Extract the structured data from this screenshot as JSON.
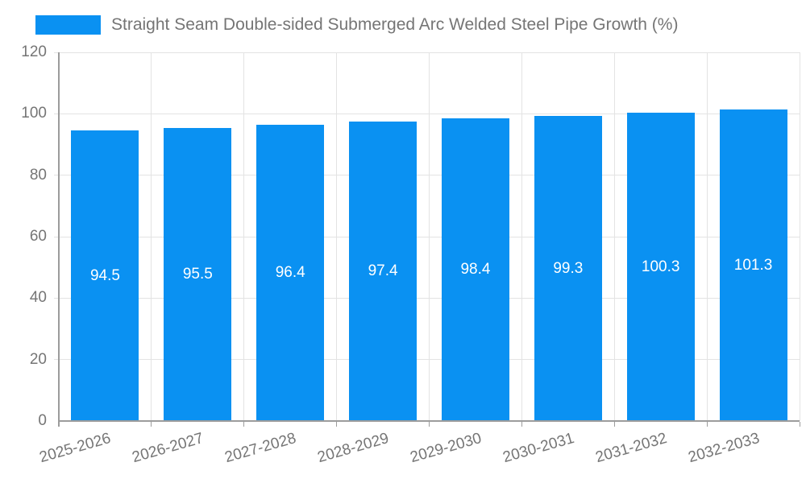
{
  "legend": {
    "series_label": "Straight Seam Double-sided Submerged Arc Welded Steel Pipe Growth (%)"
  },
  "colors": {
    "bar": "#0a91f2",
    "grid": "#e3e3e3",
    "axis": "#9c9c9c",
    "text": "#757575",
    "value_label": "#ffffff",
    "background": "#ffffff"
  },
  "chart_data": {
    "type": "bar",
    "title": "Straight Seam Double-sided Submerged Arc Welded Steel Pipe Growth (%)",
    "categories": [
      "2025-2026",
      "2026-2027",
      "2027-2028",
      "2028-2029",
      "2029-2030",
      "2030-2031",
      "2031-2032",
      "2032-2033"
    ],
    "series": [
      {
        "name": "Straight Seam Double-sided Submerged Arc Welded Steel Pipe Growth (%)",
        "values": [
          94.5,
          95.5,
          96.4,
          97.4,
          98.4,
          99.3,
          100.3,
          101.3
        ]
      }
    ],
    "value_labels": [
      "94.5",
      "95.5",
      "96.4",
      "97.4",
      "98.4",
      "99.3",
      "100.3",
      "101.3"
    ],
    "xlabel": "",
    "ylabel": "",
    "ylim": [
      0,
      120
    ],
    "ytick_interval": 20,
    "ytick_labels": [
      "0",
      "20",
      "40",
      "60",
      "80",
      "100",
      "120"
    ],
    "grid": "on",
    "legend_position": "top-left",
    "x_label_rotation_deg": -16
  }
}
